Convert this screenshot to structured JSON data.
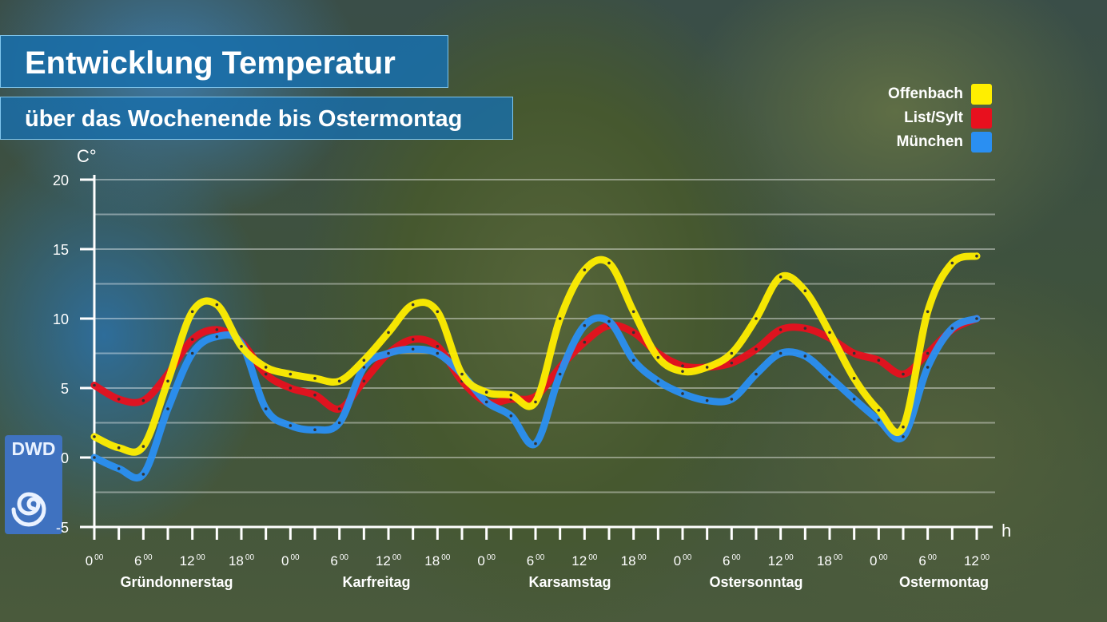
{
  "title": "Entwicklung Temperatur",
  "subtitle": "über das Wochenende bis Ostermontag",
  "logo_text": "DWD",
  "chart_data": {
    "type": "line",
    "ylabel": "C°",
    "xlabel": "h",
    "ylim": [
      -5,
      20
    ],
    "yticks": [
      -5,
      0,
      5,
      10,
      15,
      20
    ],
    "xlim": [
      0,
      108
    ],
    "hour_labels": [
      "0",
      "6",
      "12",
      "18",
      "0",
      "6",
      "12",
      "18",
      "0",
      "6",
      "12",
      "18",
      "0",
      "6",
      "12",
      "18",
      "0",
      "6",
      "12"
    ],
    "hour_label_superscript": "00",
    "day_labels": [
      "Gründonnerstag",
      "Karfreitag",
      "Karsamstag",
      "Ostersonntag",
      "Ostermontag"
    ],
    "grid": true,
    "legend_position": "top-right",
    "x": [
      0,
      3,
      6,
      9,
      12,
      15,
      18,
      21,
      24,
      27,
      30,
      33,
      36,
      39,
      42,
      45,
      48,
      51,
      54,
      57,
      60,
      63,
      66,
      69,
      72,
      75,
      78,
      81,
      84,
      87,
      90,
      93,
      96,
      99,
      102,
      105,
      108
    ],
    "series": [
      {
        "name": "Offenbach",
        "color": "#ffee00",
        "values": [
          1.5,
          0.7,
          0.8,
          5.5,
          10.5,
          11,
          8,
          6.5,
          6,
          5.7,
          5.5,
          7,
          9,
          11,
          10.5,
          6,
          4.7,
          4.5,
          4,
          10,
          13.5,
          14,
          10.5,
          7.2,
          6.2,
          6.5,
          7.5,
          10,
          13,
          12,
          9,
          5.7,
          3.4,
          2.2,
          10.5,
          14,
          14.5
        ]
      },
      {
        "name": "List/Sylt",
        "color": "#e8101e",
        "values": [
          5.2,
          4.2,
          4.1,
          6,
          8.5,
          9.2,
          8.3,
          6,
          5,
          4.5,
          3.5,
          5.5,
          7.5,
          8.5,
          8,
          5.5,
          4,
          4.2,
          4.4,
          6.5,
          8.3,
          9.5,
          9,
          7.5,
          6.6,
          6.5,
          6.8,
          7.8,
          9.2,
          9.3,
          8.6,
          7.5,
          7,
          6,
          7.5,
          9.2,
          10
        ]
      },
      {
        "name": "München",
        "color": "#2a8ff2",
        "values": [
          0,
          -0.8,
          -1.2,
          3.5,
          7.5,
          8.7,
          8.2,
          3.5,
          2.3,
          2,
          2.5,
          6.5,
          7.5,
          7.8,
          7.5,
          6,
          4,
          3,
          1,
          6,
          9.5,
          9.8,
          7,
          5.5,
          4.6,
          4.1,
          4.2,
          6,
          7.5,
          7.3,
          5.8,
          4.2,
          2.7,
          1.5,
          6.5,
          9.3,
          10
        ]
      }
    ]
  }
}
